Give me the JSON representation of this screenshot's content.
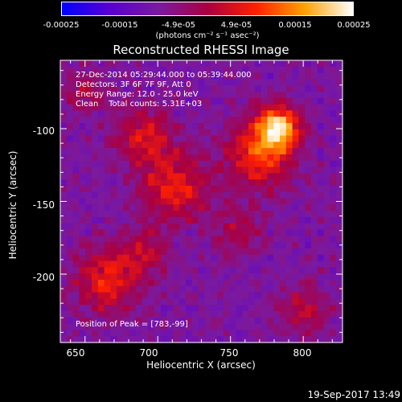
{
  "colorbar": {
    "ticks": [
      "-0.00025",
      "-0.00015",
      "-4.9e-05",
      "4.9e-05",
      "0.00015",
      "0.00025"
    ],
    "units": "(photons cm⁻² s⁻¹ asec⁻²)",
    "colors": [
      "#0000ff",
      "#5a00d0",
      "#7a1aa0",
      "#aa0040",
      "#ff2000",
      "#ffa000",
      "#ffffff"
    ]
  },
  "title": "Reconstructed RHESSI Image",
  "info": {
    "line1": "27-Dec-2014 05:29:44.000 to 05:39:44.000",
    "line2": "Detectors: 3F 6F 7F 9F, Att 0",
    "line3": "Energy Range: 12.0 - 25.0 keV",
    "line4": "Clean    Total counts: 5.31E+03"
  },
  "peak_text": "Position of Peak = [783,-99]",
  "chart_data": {
    "type": "heatmap",
    "title": "Reconstructed RHESSI Image",
    "xlabel": "Heliocentric X (arcsec)",
    "ylabel": "Heliocentric Y (arcsec)",
    "xlim": [
      633,
      827
    ],
    "ylim": [
      -247,
      -53
    ],
    "xticks": [
      650,
      700,
      750,
      800
    ],
    "yticks": [
      -100,
      -150,
      -200
    ],
    "peak": [
      783,
      -99
    ],
    "sources": [
      {
        "x": 783,
        "y": -99,
        "amp": 1.0,
        "sigma": 10
      },
      {
        "x": 770,
        "y": -118,
        "amp": 0.65,
        "sigma": 16
      },
      {
        "x": 712,
        "y": -140,
        "amp": 0.55,
        "sigma": 16
      },
      {
        "x": 690,
        "y": -105,
        "amp": 0.45,
        "sigma": 14
      },
      {
        "x": 665,
        "y": -205,
        "amp": 0.55,
        "sigma": 15
      },
      {
        "x": 690,
        "y": -185,
        "amp": 0.35,
        "sigma": 12
      },
      {
        "x": 755,
        "y": -170,
        "amp": 0.3,
        "sigma": 12
      },
      {
        "x": 800,
        "y": -225,
        "amp": 0.35,
        "sigma": 12
      },
      {
        "x": 650,
        "y": -75,
        "amp": 0.3,
        "sigma": 10
      }
    ]
  },
  "timestamp": "19-Sep-2017 13:49"
}
